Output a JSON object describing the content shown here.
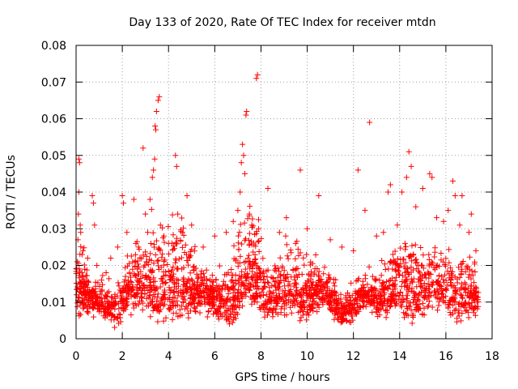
{
  "chart_data": {
    "type": "scatter",
    "title": "Day 133 of 2020, Rate Of TEC Index for receiver mtdn",
    "xlabel": "GPS time / hours",
    "ylabel": "ROTI / TECUs",
    "xlim": [
      0,
      18
    ],
    "ylim": [
      0,
      0.08
    ],
    "x_ticks": [
      "0",
      "2",
      "4",
      "6",
      "8",
      "10",
      "12",
      "14",
      "16",
      "18"
    ],
    "y_ticks": [
      "0",
      "0.01",
      "0.02",
      "0.03",
      "0.04",
      "0.05",
      "0.06",
      "0.07",
      "0.08"
    ],
    "grid": true,
    "grid_style": "dotted",
    "marker": "plus",
    "marker_color": "#ff0000",
    "data_range_x": [
      0,
      17.4
    ],
    "series": [
      {
        "marker_color": "#ff0000",
        "points": [
          [
            0.02,
            0.012
          ],
          [
            0.05,
            0.021
          ],
          [
            0.08,
            0.027
          ],
          [
            0.1,
            0.034
          ],
          [
            0.12,
            0.04
          ],
          [
            0.12,
            0.049
          ],
          [
            0.15,
            0.048
          ],
          [
            0.18,
            0.031
          ],
          [
            0.2,
            0.029
          ],
          [
            0.25,
            0.018
          ],
          [
            0.3,
            0.024
          ],
          [
            0.4,
            0.015
          ],
          [
            0.5,
            0.022
          ],
          [
            0.7,
            0.039
          ],
          [
            0.75,
            0.037
          ],
          [
            0.8,
            0.031
          ],
          [
            0.9,
            0.02
          ],
          [
            1.1,
            0.016
          ],
          [
            1.3,
            0.018
          ],
          [
            1.5,
            0.022
          ],
          [
            1.8,
            0.025
          ],
          [
            2.0,
            0.039
          ],
          [
            2.05,
            0.037
          ],
          [
            2.2,
            0.029
          ],
          [
            2.5,
            0.038
          ],
          [
            2.7,
            0.025
          ],
          [
            2.9,
            0.052
          ],
          [
            3.0,
            0.034
          ],
          [
            3.1,
            0.029
          ],
          [
            3.2,
            0.038
          ],
          [
            3.3,
            0.044
          ],
          [
            3.35,
            0.046
          ],
          [
            3.4,
            0.049
          ],
          [
            3.42,
            0.058
          ],
          [
            3.45,
            0.057
          ],
          [
            3.48,
            0.062
          ],
          [
            3.55,
            0.065
          ],
          [
            3.6,
            0.066
          ],
          [
            3.65,
            0.031
          ],
          [
            3.8,
            0.028
          ],
          [
            4.0,
            0.026
          ],
          [
            4.3,
            0.05
          ],
          [
            4.35,
            0.047
          ],
          [
            4.4,
            0.034
          ],
          [
            4.6,
            0.029
          ],
          [
            4.8,
            0.039
          ],
          [
            5.0,
            0.031
          ],
          [
            5.5,
            0.025
          ],
          [
            6.0,
            0.028
          ],
          [
            6.5,
            0.029
          ],
          [
            6.8,
            0.032
          ],
          [
            7.0,
            0.035
          ],
          [
            7.1,
            0.04
          ],
          [
            7.15,
            0.048
          ],
          [
            7.2,
            0.053
          ],
          [
            7.25,
            0.05
          ],
          [
            7.3,
            0.045
          ],
          [
            7.35,
            0.061
          ],
          [
            7.38,
            0.062
          ],
          [
            7.5,
            0.034
          ],
          [
            7.6,
            0.031
          ],
          [
            7.8,
            0.071
          ],
          [
            7.85,
            0.072
          ],
          [
            7.9,
            0.03
          ],
          [
            8.3,
            0.041
          ],
          [
            8.8,
            0.029
          ],
          [
            9.1,
            0.033
          ],
          [
            9.5,
            0.026
          ],
          [
            9.7,
            0.046
          ],
          [
            10.0,
            0.03
          ],
          [
            10.5,
            0.039
          ],
          [
            11.0,
            0.027
          ],
          [
            11.5,
            0.025
          ],
          [
            12.0,
            0.024
          ],
          [
            12.2,
            0.046
          ],
          [
            12.5,
            0.035
          ],
          [
            12.7,
            0.059
          ],
          [
            13.0,
            0.028
          ],
          [
            13.3,
            0.029
          ],
          [
            13.5,
            0.04
          ],
          [
            13.6,
            0.042
          ],
          [
            13.9,
            0.031
          ],
          [
            14.1,
            0.04
          ],
          [
            14.3,
            0.044
          ],
          [
            14.4,
            0.051
          ],
          [
            14.5,
            0.047
          ],
          [
            14.7,
            0.036
          ],
          [
            15.0,
            0.041
          ],
          [
            15.3,
            0.045
          ],
          [
            15.4,
            0.044
          ],
          [
            15.6,
            0.033
          ],
          [
            15.9,
            0.032
          ],
          [
            16.1,
            0.035
          ],
          [
            16.3,
            0.043
          ],
          [
            16.4,
            0.039
          ],
          [
            16.6,
            0.031
          ],
          [
            16.7,
            0.039
          ],
          [
            17.0,
            0.029
          ],
          [
            17.1,
            0.034
          ],
          [
            17.3,
            0.024
          ],
          [
            17.35,
            0.01
          ]
        ]
      }
    ]
  }
}
